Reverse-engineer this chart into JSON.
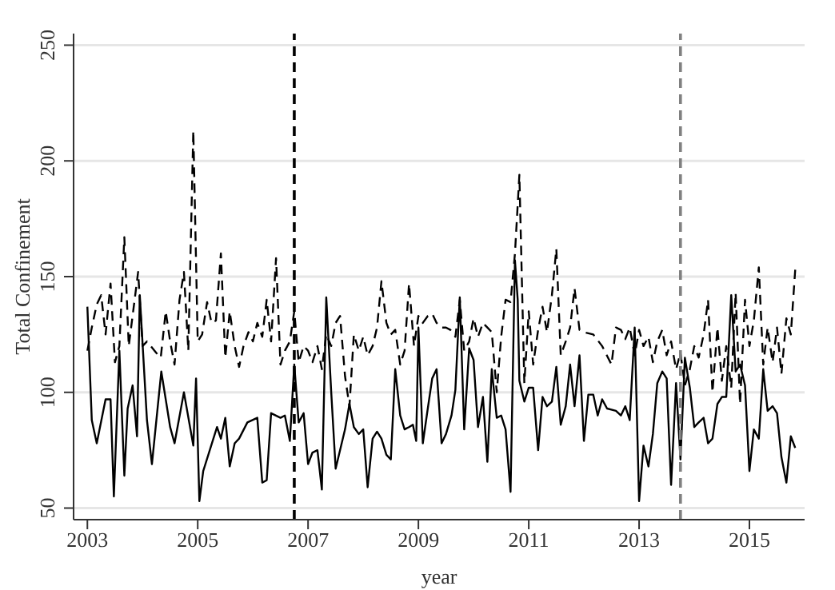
{
  "chart_data": {
    "type": "line",
    "xlabel": "year",
    "ylabel": "Total Confinement",
    "xlim": [
      2002.75,
      2016
    ],
    "xticks": [
      2003,
      2005,
      2007,
      2009,
      2011,
      2013,
      2015
    ],
    "ylim": [
      45,
      255
    ],
    "yticks": [
      50,
      100,
      150,
      200,
      250
    ],
    "grid": "y",
    "marker": "none",
    "ref_lines": [
      {
        "axis": "x",
        "value": 2006.75,
        "color": "#000000",
        "line_style": "dashed"
      },
      {
        "axis": "x",
        "value": 2013.75,
        "color": "#808080",
        "line_style": "dashed"
      }
    ],
    "series": [
      {
        "color": "#000000",
        "line_style": "solid",
        "x": [
          2003,
          2003.08,
          2003.17,
          2003.33,
          2003.42,
          2003.48,
          2003.58,
          2003.67,
          2003.73,
          2003.82,
          2003.9,
          2003.95,
          2004.08,
          2004.17,
          2004.34,
          2004.5,
          2004.58,
          2004.75,
          2004.92,
          2004.97,
          2005.03,
          2005.1,
          2005.35,
          2005.42,
          2005.5,
          2005.58,
          2005.67,
          2005.75,
          2005.9,
          2006.08,
          2006.17,
          2006.25,
          2006.33,
          2006.5,
          2006.58,
          2006.67,
          2006.75,
          2006.83,
          2006.92,
          2007,
          2007.08,
          2007.17,
          2007.25,
          2007.33,
          2007.42,
          2007.5,
          2007.67,
          2007.75,
          2007.83,
          2007.92,
          2008,
          2008.08,
          2008.17,
          2008.25,
          2008.33,
          2008.42,
          2008.5,
          2008.58,
          2008.67,
          2008.75,
          2008.83,
          2008.9,
          2008.96,
          2009,
          2009.08,
          2009.17,
          2009.25,
          2009.33,
          2009.42,
          2009.5,
          2009.6,
          2009.67,
          2009.75,
          2009.83,
          2009.92,
          2010,
          2010.08,
          2010.17,
          2010.25,
          2010.33,
          2010.42,
          2010.5,
          2010.58,
          2010.67,
          2010.75,
          2010.8,
          2010.83,
          2010.92,
          2011,
          2011.08,
          2011.17,
          2011.25,
          2011.33,
          2011.42,
          2011.5,
          2011.58,
          2011.67,
          2011.75,
          2011.83,
          2011.92,
          2012,
          2012.08,
          2012.17,
          2012.25,
          2012.33,
          2012.42,
          2012.58,
          2012.67,
          2012.75,
          2012.83,
          2012.92,
          2013,
          2013.08,
          2013.17,
          2013.25,
          2013.33,
          2013.42,
          2013.5,
          2013.58,
          2013.67,
          2013.75,
          2013.83,
          2013.92,
          2014,
          2014.08,
          2014.17,
          2014.25,
          2014.33,
          2014.42,
          2014.5,
          2014.58,
          2014.67,
          2014.75,
          2014.83,
          2014.92,
          2015,
          2015.08,
          2015.17,
          2015.25,
          2015.33,
          2015.42,
          2015.5,
          2015.58,
          2015.67,
          2015.75,
          2015.83
        ],
        "values": [
          137,
          88,
          78,
          97,
          97,
          55,
          118,
          64,
          93,
          103,
          81,
          142,
          88,
          69,
          109,
          85,
          78,
          100,
          77,
          106,
          53,
          66,
          85,
          80,
          89,
          68,
          78,
          80,
          87,
          89,
          61,
          62,
          91,
          89,
          90,
          79,
          112,
          87,
          91,
          69,
          74,
          75,
          58,
          141,
          100,
          67,
          84,
          95,
          85,
          82,
          84,
          59,
          80,
          83,
          80,
          73,
          71,
          110,
          90,
          84,
          85,
          86,
          79,
          128,
          78,
          93,
          106,
          110,
          78,
          82,
          90,
          101,
          141,
          84,
          119,
          114,
          85,
          98,
          70,
          110,
          89,
          90,
          84,
          57,
          157,
          140,
          105,
          96,
          102,
          102,
          75,
          98,
          94,
          96,
          111,
          86,
          94,
          112,
          94,
          116,
          79,
          99,
          99,
          90,
          97,
          93,
          92,
          90,
          94,
          88,
          128,
          53,
          77,
          68,
          82,
          104,
          109,
          106,
          60,
          104,
          71,
          115,
          102,
          85,
          87,
          89,
          78,
          80,
          95,
          98,
          98,
          142,
          109,
          112,
          103,
          66,
          84,
          80,
          110,
          92,
          94,
          91,
          72,
          61,
          81,
          76
        ]
      },
      {
        "color": "#000000",
        "line_style": "dashed",
        "x": [
          2003,
          2003.08,
          2003.17,
          2003.25,
          2003.33,
          2003.42,
          2003.5,
          2003.58,
          2003.67,
          2003.75,
          2003.83,
          2003.92,
          2004,
          2004.08,
          2004.25,
          2004.33,
          2004.42,
          2004.5,
          2004.58,
          2004.67,
          2004.75,
          2004.83,
          2004.92,
          2005,
          2005.08,
          2005.17,
          2005.25,
          2005.33,
          2005.42,
          2005.5,
          2005.58,
          2005.67,
          2005.75,
          2005.83,
          2005.92,
          2006,
          2006.08,
          2006.17,
          2006.25,
          2006.33,
          2006.42,
          2006.5,
          2006.58,
          2006.67,
          2006.75,
          2006.83,
          2006.92,
          2007,
          2007.08,
          2007.17,
          2007.25,
          2007.33,
          2007.42,
          2007.5,
          2007.58,
          2007.67,
          2007.75,
          2007.83,
          2007.92,
          2008,
          2008.08,
          2008.17,
          2008.25,
          2008.33,
          2008.42,
          2008.5,
          2008.58,
          2008.67,
          2008.75,
          2008.83,
          2008.92,
          2009,
          2009.08,
          2009.17,
          2009.25,
          2009.33,
          2009.42,
          2009.5,
          2009.58,
          2009.67,
          2009.75,
          2009.83,
          2009.92,
          2010,
          2010.08,
          2010.17,
          2010.25,
          2010.33,
          2010.42,
          2010.5,
          2010.58,
          2010.67,
          2010.75,
          2010.83,
          2010.92,
          2011,
          2011.08,
          2011.17,
          2011.25,
          2011.33,
          2011.42,
          2011.5,
          2011.58,
          2011.67,
          2011.75,
          2011.83,
          2011.92,
          2012,
          2012.17,
          2012.33,
          2012.5,
          2012.58,
          2012.67,
          2012.75,
          2012.83,
          2012.92,
          2013,
          2013.08,
          2013.17,
          2013.25,
          2013.33,
          2013.42,
          2013.5,
          2013.58,
          2013.67,
          2013.75,
          2013.83,
          2013.92,
          2014,
          2014.08,
          2014.17,
          2014.25,
          2014.33,
          2014.42,
          2014.5,
          2014.58,
          2014.67,
          2014.75,
          2014.83,
          2014.92,
          2015,
          2015.08,
          2015.17,
          2015.25,
          2015.33,
          2015.42,
          2015.5,
          2015.58,
          2015.67,
          2015.75,
          2015.83
        ],
        "values": [
          118,
          128,
          138,
          142,
          125,
          147,
          113,
          120,
          167,
          120,
          135,
          152,
          120,
          122,
          117,
          115,
          135,
          122,
          112,
          140,
          152,
          118,
          213,
          122,
          125,
          139,
          130,
          131,
          160,
          115,
          135,
          120,
          111,
          120,
          126,
          122,
          130,
          124,
          140,
          122,
          158,
          112,
          118,
          122,
          135,
          113,
          120,
          118,
          113,
          120,
          110,
          125,
          120,
          130,
          133,
          107,
          94,
          125,
          118,
          124,
          116,
          120,
          128,
          148,
          130,
          125,
          127,
          112,
          118,
          147,
          120,
          133,
          130,
          133,
          134,
          130,
          128,
          128,
          127,
          124,
          140,
          118,
          122,
          132,
          124,
          130,
          128,
          126,
          100,
          124,
          140,
          139,
          160,
          194,
          104,
          135,
          112,
          127,
          137,
          126,
          142,
          162,
          116,
          122,
          128,
          145,
          127,
          126,
          125,
          120,
          112,
          128,
          127,
          123,
          128,
          116,
          127,
          120,
          124,
          113,
          122,
          127,
          116,
          122,
          110,
          117,
          103,
          110,
          120,
          115,
          125,
          140,
          100,
          128,
          105,
          120,
          102,
          143,
          95,
          140,
          120,
          131,
          154,
          112,
          128,
          113,
          128,
          108,
          132,
          125,
          153
        ]
      }
    ]
  }
}
